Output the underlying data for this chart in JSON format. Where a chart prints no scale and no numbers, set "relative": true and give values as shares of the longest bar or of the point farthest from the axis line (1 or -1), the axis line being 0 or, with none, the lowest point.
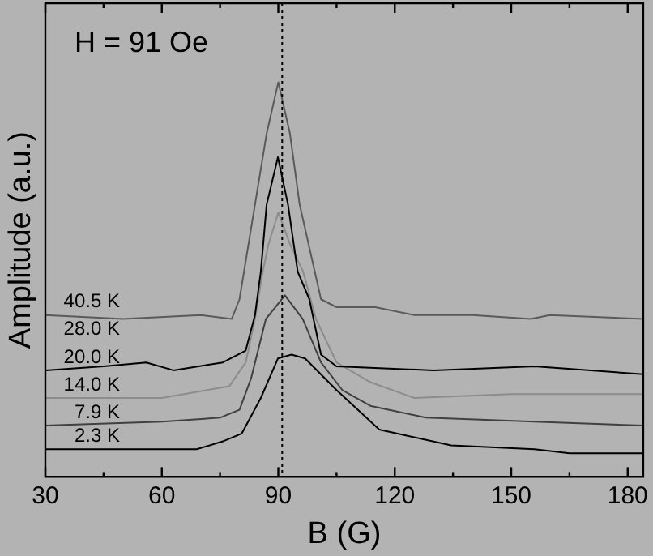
{
  "chart_data": {
    "type": "line",
    "relative": true,
    "xlabel": "B (G)",
    "ylabel": "Amplitude (a.u.)",
    "xlim": [
      30,
      184
    ],
    "xticks": [
      30,
      {
        "value": 45,
        "label": null
      },
      60,
      {
        "value": 75,
        "label": null
      },
      90,
      {
        "value": 105,
        "label": null
      },
      120,
      {
        "value": 135,
        "label": null
      },
      150,
      {
        "value": 165,
        "label": null
      },
      180
    ],
    "grid": false,
    "legend": false,
    "marker": "none",
    "line_style": "solid",
    "ref_lines": [
      {
        "axis": "x",
        "value": 91,
        "color": "#000000",
        "line_style": "dotted"
      }
    ],
    "annotations": [
      "H = 91 Oe",
      "28.0 K"
    ],
    "series": [
      {
        "name": "40.5 K",
        "color": "#5a5a5a",
        "x": [
          30,
          50,
          70,
          78,
          80,
          84,
          87,
          90,
          93,
          95.5,
          101,
          105,
          115,
          125,
          140,
          155,
          160,
          184
        ],
        "values": [
          0.41,
          0.4,
          0.41,
          0.4,
          0.45,
          0.69,
          0.87,
          1.0,
          0.87,
          0.69,
          0.45,
          0.43,
          0.43,
          0.41,
          0.41,
          0.4,
          0.41,
          0.4
        ]
      },
      {
        "name": "20.0 K",
        "color": "#000000",
        "x": [
          30,
          45,
          56,
          63,
          75.7,
          81.6,
          84,
          85.5,
          87,
          89.9,
          92.5,
          95,
          98,
          101,
          105,
          130,
          156,
          184
        ],
        "values": [
          0.27,
          0.28,
          0.29,
          0.27,
          0.29,
          0.32,
          0.41,
          0.52,
          0.69,
          0.81,
          0.69,
          0.52,
          0.45,
          0.31,
          0.28,
          0.27,
          0.28,
          0.26
        ]
      },
      {
        "name": "14.0 K",
        "color": "#8c8c8c",
        "x": [
          30,
          60,
          77.4,
          81.6,
          84,
          86,
          87.5,
          90,
          93,
          96.4,
          99.7,
          105,
          113.7,
          125,
          150,
          184
        ],
        "values": [
          0.2,
          0.2,
          0.23,
          0.29,
          0.4,
          0.52,
          0.59,
          0.67,
          0.59,
          0.52,
          0.4,
          0.29,
          0.24,
          0.2,
          0.21,
          0.21
        ]
      },
      {
        "name": "7.9 K",
        "color": "#404040",
        "x": [
          30,
          60,
          75,
          80,
          83,
          86.8,
          91.7,
          96.3,
          101,
          106.5,
          113.7,
          128,
          156,
          184
        ],
        "values": [
          0.13,
          0.14,
          0.15,
          0.17,
          0.25,
          0.4,
          0.46,
          0.4,
          0.29,
          0.22,
          0.18,
          0.15,
          0.14,
          0.13
        ]
      },
      {
        "name": "2.3 K",
        "color": "#000000",
        "x": [
          30,
          60,
          69,
          75.7,
          80.6,
          85.5,
          89.9,
          93.4,
          96.9,
          105,
          116,
          134.5,
          156,
          165,
          184
        ],
        "values": [
          0.07,
          0.07,
          0.07,
          0.09,
          0.11,
          0.2,
          0.3,
          0.31,
          0.3,
          0.22,
          0.12,
          0.08,
          0.07,
          0.06,
          0.06
        ]
      }
    ]
  }
}
